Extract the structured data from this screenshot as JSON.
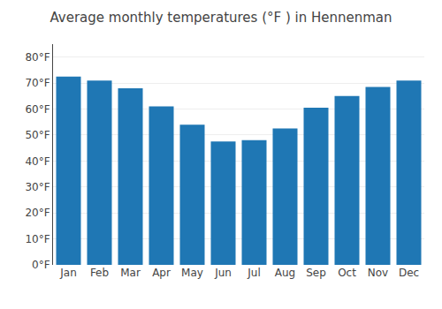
{
  "chart_data": {
    "type": "bar",
    "title": "Average monthly temperatures (°F ) in Hennenman",
    "categories": [
      "Jan",
      "Feb",
      "Mar",
      "Apr",
      "May",
      "Jun",
      "Jul",
      "Aug",
      "Sep",
      "Oct",
      "Nov",
      "Dec"
    ],
    "values": [
      72.5,
      71.0,
      68.0,
      61.0,
      54.0,
      47.5,
      48.0,
      52.5,
      60.5,
      65.0,
      68.5,
      71.0
    ],
    "ylim": [
      0,
      85
    ],
    "yticks": [
      {
        "value": 0,
        "label": "0°F"
      },
      {
        "value": 10,
        "label": "10°F"
      },
      {
        "value": 20,
        "label": "20°F"
      },
      {
        "value": 30,
        "label": "30°F"
      },
      {
        "value": 40,
        "label": "40°F"
      },
      {
        "value": 50,
        "label": "50°F"
      },
      {
        "value": 60,
        "label": "60°F"
      },
      {
        "value": 70,
        "label": "70°F"
      },
      {
        "value": 80,
        "label": "80°F"
      }
    ],
    "grid": true
  }
}
